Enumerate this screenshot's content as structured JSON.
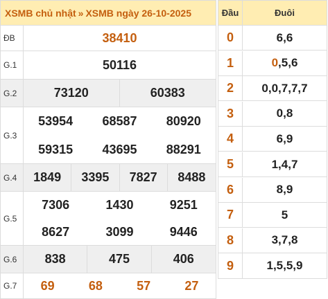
{
  "header": {
    "link1": "XSMB chủ nhật",
    "separator": "»",
    "link2": "XSMB ngày 26-10-2025"
  },
  "prizes": [
    {
      "label": "ĐB",
      "numbers": [
        "38410"
      ]
    },
    {
      "label": "G.1",
      "numbers": [
        "50116"
      ]
    },
    {
      "label": "G.2",
      "numbers": [
        "73120",
        "60383"
      ]
    },
    {
      "label": "G.3",
      "numbers": [
        "53954",
        "68587",
        "80920",
        "59315",
        "43695",
        "88291"
      ]
    },
    {
      "label": "G.4",
      "numbers": [
        "1849",
        "3395",
        "7827",
        "8488"
      ]
    },
    {
      "label": "G.5",
      "numbers": [
        "7306",
        "1430",
        "9251",
        "8627",
        "3099",
        "9446"
      ]
    },
    {
      "label": "G.6",
      "numbers": [
        "838",
        "475",
        "406"
      ]
    },
    {
      "label": "G.7",
      "numbers": [
        "69",
        "68",
        "57",
        "27"
      ]
    }
  ],
  "loto": {
    "head_label": "Đầu",
    "tail_label": "Đuôi",
    "rows": [
      {
        "head": "0",
        "tail_hl": "",
        "tail_rest": "6,6"
      },
      {
        "head": "1",
        "tail_hl": "0",
        "tail_rest": ",5,6"
      },
      {
        "head": "2",
        "tail_hl": "",
        "tail_rest": "0,0,7,7,7"
      },
      {
        "head": "3",
        "tail_hl": "",
        "tail_rest": "0,8"
      },
      {
        "head": "4",
        "tail_hl": "",
        "tail_rest": "6,9"
      },
      {
        "head": "5",
        "tail_hl": "",
        "tail_rest": "1,4,7"
      },
      {
        "head": "6",
        "tail_hl": "",
        "tail_rest": "8,9"
      },
      {
        "head": "7",
        "tail_hl": "",
        "tail_rest": "5"
      },
      {
        "head": "8",
        "tail_hl": "",
        "tail_rest": "3,7,8"
      },
      {
        "head": "9",
        "tail_hl": "",
        "tail_rest": "1,5,5,9"
      }
    ]
  },
  "colors": {
    "accent": "#c45f0f",
    "header_bg": "#ffedb2",
    "shade_bg": "#efefef"
  }
}
